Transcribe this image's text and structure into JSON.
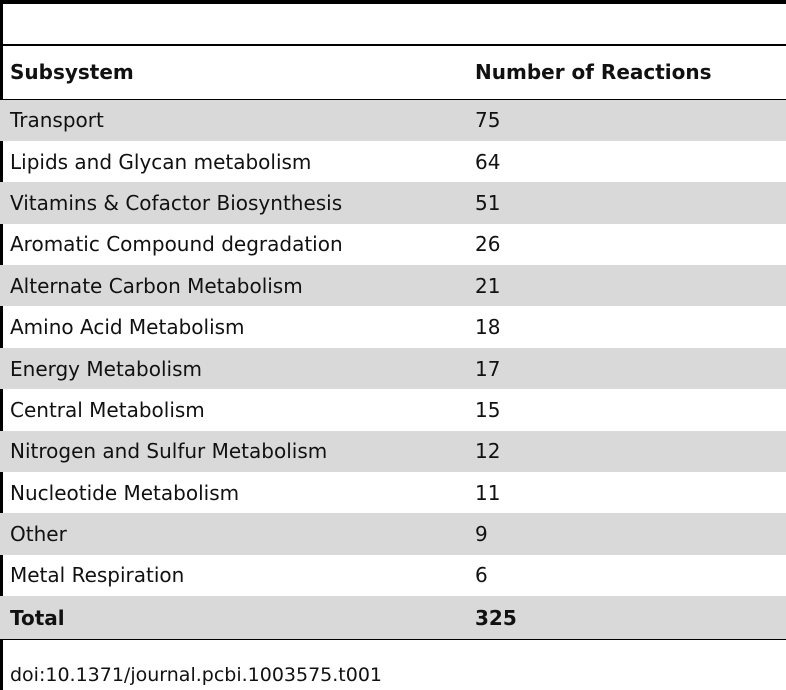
{
  "table": {
    "headers": {
      "subsystem": "Subsystem",
      "count": "Number of Reactions"
    },
    "rows": [
      {
        "subsystem": "Transport",
        "count": "75",
        "shaded": true
      },
      {
        "subsystem": "Lipids and Glycan metabolism",
        "count": "64",
        "shaded": false
      },
      {
        "subsystem": "Vitamins & Cofactor Biosynthesis",
        "count": "51",
        "shaded": true
      },
      {
        "subsystem": "Aromatic Compound degradation",
        "count": "26",
        "shaded": false
      },
      {
        "subsystem": "Alternate Carbon Metabolism",
        "count": "21",
        "shaded": true
      },
      {
        "subsystem": "Amino Acid Metabolism",
        "count": "18",
        "shaded": false
      },
      {
        "subsystem": "Energy Metabolism",
        "count": "17",
        "shaded": true
      },
      {
        "subsystem": "Central Metabolism",
        "count": "15",
        "shaded": false
      },
      {
        "subsystem": "Nitrogen and Sulfur Metabolism",
        "count": "12",
        "shaded": true
      },
      {
        "subsystem": "Nucleotide Metabolism",
        "count": "11",
        "shaded": false
      },
      {
        "subsystem": "Other",
        "count": "9",
        "shaded": true
      },
      {
        "subsystem": "Metal Respiration",
        "count": "6",
        "shaded": false
      }
    ],
    "total": {
      "label": "Total",
      "count": "325"
    }
  },
  "footer": {
    "doi": "doi:10.1371/journal.pcbi.1003575.t001"
  },
  "colors": {
    "row_shade": "#d9d9d9",
    "rule": "#000000"
  }
}
